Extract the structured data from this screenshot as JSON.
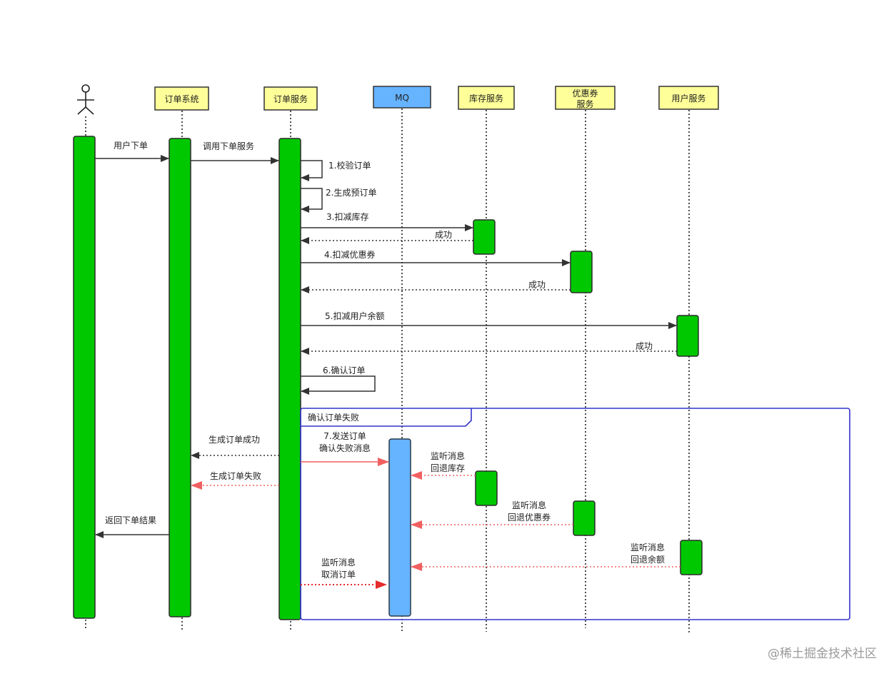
{
  "participants": {
    "order_system": "订单系统",
    "order_service": "订单服务",
    "mq": "MQ",
    "inventory": "库存服务",
    "coupon_line1": "优惠券",
    "coupon_line2": "服务",
    "user": "用户服务"
  },
  "messages": {
    "m_user_order": "用户下单",
    "m_call_service": "调用下单服务",
    "m1": "1.校验订单",
    "m2": "2.生成预订单",
    "m3": "3.扣减库存",
    "m3_ok": "成功",
    "m4": "4.扣减优惠券",
    "m4_ok": "成功",
    "m5": "5.扣减用户余额",
    "m5_ok": "成功",
    "m6": "6.确认订单",
    "m7_line1": "7.发送订单",
    "m7_line2": "确认失败消息",
    "create_ok": "生成订单成功",
    "create_fail": "生成订单失败",
    "return_result": "返回下单结果",
    "inv_line1": "监听消息",
    "inv_line2": "回退库存",
    "coupon_line1": "监听消息",
    "coupon_line2": "回退优惠券",
    "balance_line1": "监听消息",
    "balance_line2": "回退余额",
    "cancel_line1": "监听消息",
    "cancel_line2": "取消订单"
  },
  "frame": {
    "label": "确认订单失败"
  },
  "watermark": "@稀土掘金技术社区",
  "colors": {
    "participant_fill": "#ffff99",
    "mq_fill": "#66b3ff",
    "activation": "#00c800",
    "frame": "#3333cc",
    "failure_arrow": "#f06060"
  }
}
